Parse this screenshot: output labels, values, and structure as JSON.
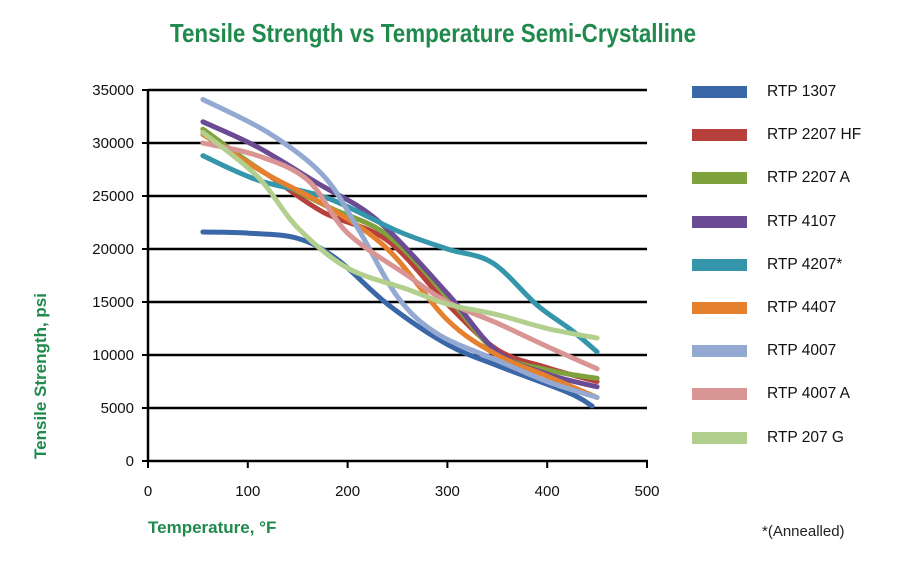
{
  "chart_data": {
    "type": "line",
    "title": "Tensile Strength vs Temperature Semi-Crystalline",
    "xlabel": "Temperature, °F",
    "ylabel": "Tensile Strength, psi",
    "xlim": [
      0,
      500
    ],
    "ylim": [
      0,
      35000
    ],
    "xticks": [
      "0",
      "100",
      "200",
      "300",
      "400",
      "500"
    ],
    "yticks": [
      "0",
      "5000",
      "10000",
      "15000",
      "20000",
      "25000",
      "30000",
      "35000"
    ],
    "grid": "horizontal",
    "legend_position": "right",
    "footnote": "*(Annealled)",
    "series": [
      {
        "name": "RTP 1307",
        "color": "#3a67a8",
        "points": [
          [
            55,
            21600
          ],
          [
            100,
            21500
          ],
          [
            150,
            21000
          ],
          [
            190,
            19000
          ],
          [
            240,
            14800
          ],
          [
            300,
            11000
          ],
          [
            350,
            9000
          ],
          [
            420,
            6500
          ],
          [
            445,
            5200
          ]
        ]
      },
      {
        "name": "RTP 2207 HF",
        "color": "#b8403c",
        "points": [
          [
            55,
            31000
          ],
          [
            120,
            27000
          ],
          [
            175,
            23500
          ],
          [
            240,
            20800
          ],
          [
            300,
            14800
          ],
          [
            350,
            10500
          ],
          [
            400,
            8800
          ],
          [
            450,
            7500
          ]
        ]
      },
      {
        "name": "RTP 2207 A",
        "color": "#7fa23c",
        "points": [
          [
            55,
            31300
          ],
          [
            120,
            27000
          ],
          [
            180,
            24000
          ],
          [
            240,
            21300
          ],
          [
            300,
            15500
          ],
          [
            350,
            10200
          ],
          [
            400,
            8600
          ],
          [
            450,
            7800
          ]
        ]
      },
      {
        "name": "RTP 4107",
        "color": "#6b4c94",
        "points": [
          [
            55,
            32000
          ],
          [
            110,
            29600
          ],
          [
            170,
            26200
          ],
          [
            230,
            22700
          ],
          [
            300,
            15800
          ],
          [
            350,
            10300
          ],
          [
            400,
            8200
          ],
          [
            450,
            7000
          ]
        ]
      },
      {
        "name": "RTP 4207*",
        "color": "#3596ab",
        "points": [
          [
            55,
            28800
          ],
          [
            110,
            26500
          ],
          [
            180,
            24800
          ],
          [
            250,
            21700
          ],
          [
            300,
            20000
          ],
          [
            345,
            18700
          ],
          [
            390,
            14700
          ],
          [
            425,
            12300
          ],
          [
            450,
            10300
          ]
        ]
      },
      {
        "name": "RTP 4407",
        "color": "#e5812e",
        "points": [
          [
            55,
            30800
          ],
          [
            120,
            27000
          ],
          [
            180,
            24000
          ],
          [
            240,
            20000
          ],
          [
            300,
            13300
          ],
          [
            350,
            10000
          ],
          [
            400,
            8000
          ],
          [
            450,
            6000
          ]
        ]
      },
      {
        "name": "RTP 4007",
        "color": "#93a9d2",
        "points": [
          [
            55,
            34100
          ],
          [
            120,
            31000
          ],
          [
            175,
            27000
          ],
          [
            210,
            22000
          ],
          [
            250,
            15500
          ],
          [
            290,
            12000
          ],
          [
            350,
            9500
          ],
          [
            400,
            7500
          ],
          [
            450,
            6000
          ]
        ]
      },
      {
        "name": "RTP 4007 A",
        "color": "#d99494",
        "points": [
          [
            55,
            30000
          ],
          [
            110,
            28800
          ],
          [
            160,
            26500
          ],
          [
            200,
            21500
          ],
          [
            260,
            17500
          ],
          [
            300,
            15000
          ],
          [
            350,
            13000
          ],
          [
            400,
            10800
          ],
          [
            450,
            8700
          ]
        ]
      },
      {
        "name": "RTP 207 G",
        "color": "#b3cf8e",
        "points": [
          [
            55,
            31000
          ],
          [
            110,
            26800
          ],
          [
            150,
            22000
          ],
          [
            200,
            18200
          ],
          [
            260,
            16200
          ],
          [
            300,
            14800
          ],
          [
            350,
            13800
          ],
          [
            400,
            12500
          ],
          [
            450,
            11600
          ]
        ]
      }
    ]
  }
}
